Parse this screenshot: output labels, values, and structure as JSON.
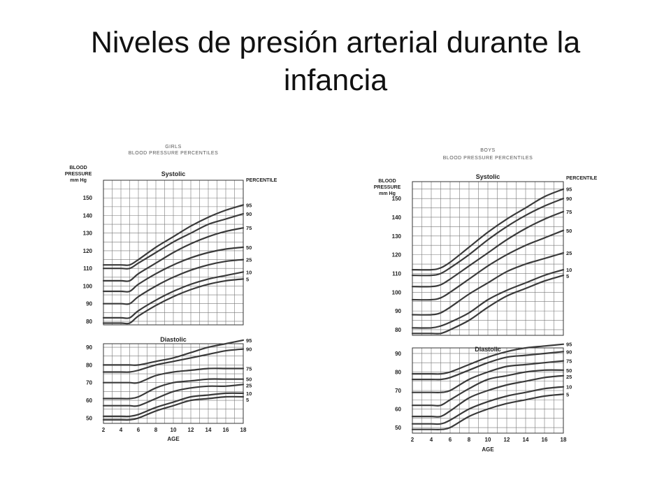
{
  "slide": {
    "title": "Niveles de presión arterial durante la infancia"
  },
  "chart_data": [
    {
      "id": "girls",
      "type": "line",
      "header": "GIRLS",
      "subheader": "BLOOD PRESSURE PERCENTILES",
      "ylabel": "BLOOD PRESSURE mm Hg",
      "xlabel": "AGE",
      "legend_title": "PERCENTILE",
      "grid": true,
      "x_ticks": [
        2,
        4,
        6,
        8,
        10,
        12,
        14,
        16,
        18
      ],
      "subplots": [
        {
          "title": "Systolic",
          "ylim": [
            78,
            160
          ],
          "y_ticks": [
            80,
            90,
            100,
            110,
            120,
            130,
            140,
            150
          ],
          "x": [
            2,
            4,
            5,
            6,
            8,
            10,
            12,
            14,
            16,
            18
          ],
          "series": [
            {
              "name": "95",
              "values": [
                112,
                112,
                112,
                115,
                122,
                128,
                134,
                139,
                143,
                146
              ]
            },
            {
              "name": "90",
              "values": [
                110,
                110,
                110,
                113,
                119,
                125,
                130,
                135,
                138,
                141
              ]
            },
            {
              "name": "75",
              "values": [
                103,
                103,
                103,
                107,
                113,
                119,
                124,
                128,
                131,
                133
              ]
            },
            {
              "name": "50",
              "values": [
                97,
                97,
                97,
                101,
                107,
                112,
                116,
                119,
                121,
                122
              ]
            },
            {
              "name": "25",
              "values": [
                90,
                90,
                90,
                94,
                100,
                105,
                109,
                112,
                114,
                115
              ]
            },
            {
              "name": "10",
              "values": [
                82,
                82,
                82,
                86,
                92,
                97,
                101,
                104,
                106,
                108
              ]
            },
            {
              "name": "5",
              "values": [
                79,
                79,
                79,
                83,
                89,
                94,
                98,
                101,
                103,
                104
              ]
            }
          ]
        },
        {
          "title": "Diastolic",
          "ylim": [
            47,
            92
          ],
          "y_ticks": [
            50,
            60,
            70,
            80,
            90
          ],
          "x": [
            2,
            4,
            5,
            6,
            8,
            10,
            12,
            14,
            16,
            18
          ],
          "series": [
            {
              "name": "95",
              "values": [
                80,
                80,
                80,
                80,
                82,
                84,
                87,
                90,
                92,
                94
              ]
            },
            {
              "name": "90",
              "values": [
                76,
                76,
                76,
                77,
                80,
                82,
                84,
                86,
                88,
                89
              ]
            },
            {
              "name": "75",
              "values": [
                70,
                70,
                70,
                70,
                74,
                76,
                77,
                78,
                78,
                78
              ]
            },
            {
              "name": "50",
              "values": [
                61,
                61,
                61,
                62,
                67,
                70,
                71,
                72,
                72,
                72
              ]
            },
            {
              "name": "25",
              "values": [
                57,
                57,
                57,
                57,
                61,
                65,
                67,
                68,
                68,
                69
              ]
            },
            {
              "name": "10",
              "values": [
                51,
                51,
                51,
                52,
                56,
                59,
                62,
                63,
                64,
                64
              ]
            },
            {
              "name": "5",
              "values": [
                49,
                49,
                49,
                50,
                54,
                57,
                60,
                61,
                62,
                62
              ]
            }
          ]
        }
      ]
    },
    {
      "id": "boys",
      "type": "line",
      "header": "BOYS",
      "subheader": "BLOOD PRESSURE PERCENTILES",
      "ylabel": "BLOOD PRESSURE mm Hg",
      "xlabel": "AGE",
      "legend_title": "PERCENTILE",
      "grid": true,
      "x_ticks": [
        2,
        4,
        6,
        8,
        10,
        12,
        14,
        16,
        18
      ],
      "subplots": [
        {
          "title": "Systolic",
          "ylim": [
            77,
            159
          ],
          "y_ticks": [
            80,
            90,
            100,
            110,
            120,
            130,
            140,
            150
          ],
          "x": [
            2,
            4,
            5,
            6,
            8,
            10,
            12,
            14,
            16,
            18
          ],
          "series": [
            {
              "name": "95",
              "values": [
                112,
                112,
                113,
                116,
                124,
                132,
                139,
                145,
                151,
                155
              ]
            },
            {
              "name": "90",
              "values": [
                109,
                109,
                110,
                113,
                120,
                128,
                135,
                141,
                146,
                150
              ]
            },
            {
              "name": "75",
              "values": [
                103,
                103,
                104,
                107,
                114,
                121,
                128,
                134,
                139,
                143
              ]
            },
            {
              "name": "50",
              "values": [
                96,
                96,
                97,
                100,
                107,
                114,
                120,
                125,
                129,
                133
              ]
            },
            {
              "name": "25",
              "values": [
                88,
                88,
                89,
                92,
                99,
                105,
                111,
                115,
                118,
                121
              ]
            },
            {
              "name": "10",
              "values": [
                81,
                81,
                82,
                84,
                89,
                96,
                101,
                105,
                109,
                112
              ]
            },
            {
              "name": "5",
              "values": [
                78,
                78,
                78,
                80,
                85,
                92,
                98,
                102,
                106,
                109
              ]
            }
          ]
        },
        {
          "title": "Diastolic",
          "ylim": [
            47,
            93
          ],
          "y_ticks": [
            50,
            60,
            70,
            80,
            90
          ],
          "x": [
            2,
            4,
            5,
            6,
            8,
            10,
            12,
            14,
            16,
            18
          ],
          "series": [
            {
              "name": "95",
              "values": [
                79,
                79,
                79,
                80,
                84,
                88,
                91,
                93,
                94,
                95
              ]
            },
            {
              "name": "90",
              "values": [
                76,
                76,
                76,
                77,
                81,
                85,
                88,
                89,
                90,
                91
              ]
            },
            {
              "name": "75",
              "values": [
                69,
                69,
                69,
                70,
                76,
                80,
                83,
                84,
                85,
                86
              ]
            },
            {
              "name": "50",
              "values": [
                62,
                62,
                62,
                65,
                71,
                76,
                78,
                80,
                81,
                81
              ]
            },
            {
              "name": "25",
              "values": [
                56,
                56,
                56,
                59,
                66,
                70,
                73,
                75,
                77,
                78
              ]
            },
            {
              "name": "10",
              "values": [
                52,
                52,
                52,
                54,
                60,
                64,
                67,
                69,
                71,
                72
              ]
            },
            {
              "name": "5",
              "values": [
                49,
                49,
                49,
                50,
                56,
                60,
                63,
                65,
                67,
                68
              ]
            }
          ]
        }
      ]
    }
  ]
}
